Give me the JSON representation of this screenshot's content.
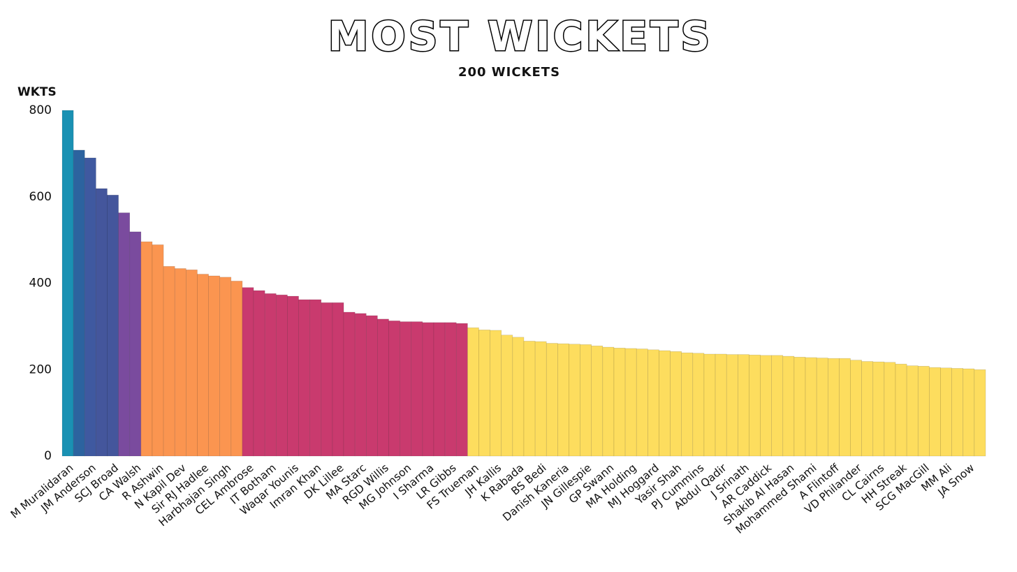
{
  "chart_data": {
    "type": "bar",
    "title": "MOST WICKETS",
    "subtitle": "200 WICKETS",
    "y_label": "WKTS",
    "categories": [
      "M Muralidaran",
      null,
      "JM Anderson",
      null,
      "SCJ Broad",
      null,
      "CA Walsh",
      null,
      "R Ashwin",
      null,
      "N Kapil Dev",
      null,
      "Sir RJ Hadlee",
      null,
      "Harbhajan Singh",
      null,
      "CEL Ambrose",
      null,
      "IT Botham",
      null,
      "Waqar Younis",
      null,
      "Imran Khan",
      null,
      "DK Lillee",
      null,
      "MA Starc",
      null,
      "RGD Willis",
      null,
      "MG Johnson",
      null,
      "I Sharma",
      null,
      "LR Gibbs",
      null,
      "FS Trueman",
      null,
      "JH Kallis",
      null,
      "K Rabada",
      null,
      "BS Bedi",
      null,
      "Danish Kaneria",
      null,
      "JN Gillespie",
      null,
      "GP Swann",
      null,
      "MA Holding",
      null,
      "MJ Hoggard",
      null,
      "Yasir Shah",
      null,
      "PJ Cummins",
      null,
      "Abdul Qadir",
      null,
      "J Srinath",
      null,
      "AR Caddick",
      null,
      "Shakib Al Hasan",
      null,
      "Mohammed Shami",
      null,
      "A Flintoff",
      null,
      "VD Philander",
      null,
      "CL Cairns",
      null,
      "HH Streak",
      null,
      "SCG MacGill",
      null,
      "MM Ali",
      null,
      "JA Snow",
      null
    ],
    "values": [
      800,
      708,
      690,
      619,
      604,
      563,
      519,
      496,
      489,
      439,
      434,
      431,
      421,
      417,
      414,
      405,
      390,
      383,
      376,
      373,
      370,
      362,
      362,
      355,
      355,
      333,
      330,
      325,
      317,
      313,
      311,
      311,
      309,
      309,
      309,
      307,
      297,
      292,
      291,
      280,
      275,
      266,
      265,
      261,
      260,
      259,
      258,
      255,
      252,
      250,
      249,
      248,
      246,
      244,
      242,
      239,
      238,
      236,
      236,
      235,
      235,
      234,
      233,
      233,
      231,
      229,
      228,
      227,
      226,
      226,
      222,
      219,
      218,
      217,
      213,
      209,
      208,
      205,
      204,
      203,
      202,
      200
    ],
    "colors": [
      "#1a91b3",
      "#2c639f",
      "#3f59a0",
      "#44569c",
      "#44569c",
      "#7a4b9e",
      "#7a4b9e",
      "#fb9550",
      "#fb9550",
      "#fb9550",
      "#fb9550",
      "#fb9550",
      "#fb9550",
      "#fb9550",
      "#fb9550",
      "#fb9550",
      "#c93a6e",
      "#c93a6e",
      "#c93a6e",
      "#c93a6e",
      "#c93a6e",
      "#c93a6e",
      "#c93a6e",
      "#c93a6e",
      "#c93a6e",
      "#c93a6e",
      "#c93a6e",
      "#c93a6e",
      "#c93a6e",
      "#c93a6e",
      "#c93a6e",
      "#c93a6e",
      "#c93a6e",
      "#c93a6e",
      "#c93a6e",
      "#c93a6e",
      "#fddd5e",
      "#fddd5e",
      "#fddd5e",
      "#fddd5e",
      "#fddd5e",
      "#fddd5e",
      "#fddd5e",
      "#fddd5e",
      "#fddd5e",
      "#fddd5e",
      "#fddd5e",
      "#fddd5e",
      "#fddd5e",
      "#fddd5e",
      "#fddd5e",
      "#fddd5e",
      "#fddd5e",
      "#fddd5e",
      "#fddd5e",
      "#fddd5e",
      "#fddd5e",
      "#fddd5e",
      "#fddd5e",
      "#fddd5e",
      "#fddd5e",
      "#fddd5e",
      "#fddd5e",
      "#fddd5e",
      "#fddd5e",
      "#fddd5e",
      "#fddd5e",
      "#fddd5e",
      "#fddd5e",
      "#fddd5e",
      "#fddd5e",
      "#fddd5e",
      "#fddd5e",
      "#fddd5e",
      "#fddd5e",
      "#fddd5e",
      "#fddd5e",
      "#fddd5e",
      "#fddd5e",
      "#fddd5e",
      "#fddd5e",
      "#fddd5e"
    ],
    "ylim": [
      0,
      800
    ],
    "yticks": [
      0,
      200,
      400,
      600,
      800
    ],
    "grid": false
  }
}
